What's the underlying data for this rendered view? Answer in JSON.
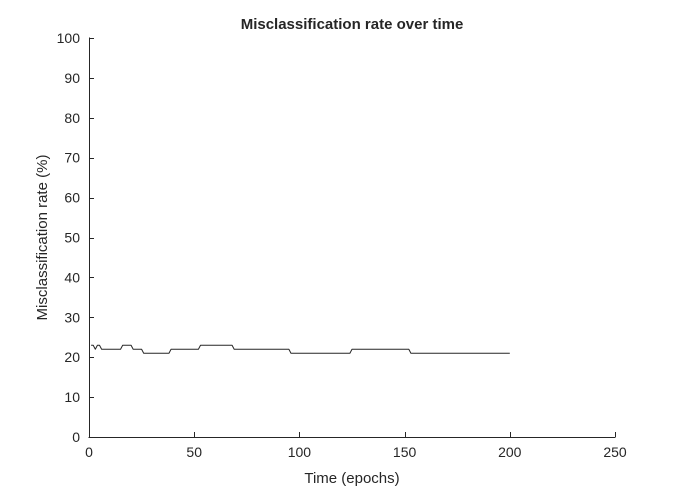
{
  "chart_data": {
    "type": "line",
    "title": "Misclassification rate over time",
    "xlabel": "Time (epochs)",
    "ylabel": "Misclassification rate (%)",
    "xlim": [
      0,
      250
    ],
    "ylim": [
      0,
      100
    ],
    "xticks": [
      0,
      50,
      100,
      150,
      200,
      250
    ],
    "yticks": [
      0,
      10,
      20,
      30,
      40,
      50,
      60,
      70,
      80,
      90,
      100
    ],
    "grid": false,
    "line_color": "#262626",
    "series": [
      {
        "x": [
          1,
          2,
          3,
          4,
          5,
          6,
          7,
          8,
          10,
          15,
          16,
          20,
          21,
          25,
          26,
          27,
          30,
          38,
          39,
          45,
          52,
          53,
          60,
          68,
          69,
          70,
          80,
          95,
          96,
          100,
          110,
          124,
          125,
          130,
          140,
          152,
          153,
          160,
          180,
          200
        ],
        "y": [
          23,
          23,
          22,
          23,
          23,
          22,
          22,
          22,
          22,
          22,
          23,
          23,
          22,
          22,
          21,
          21,
          21,
          21,
          22,
          22,
          22,
          23,
          23,
          23,
          22,
          22,
          22,
          22,
          21,
          21,
          21,
          21,
          22,
          22,
          22,
          22,
          21,
          21,
          21,
          21
        ]
      }
    ]
  }
}
